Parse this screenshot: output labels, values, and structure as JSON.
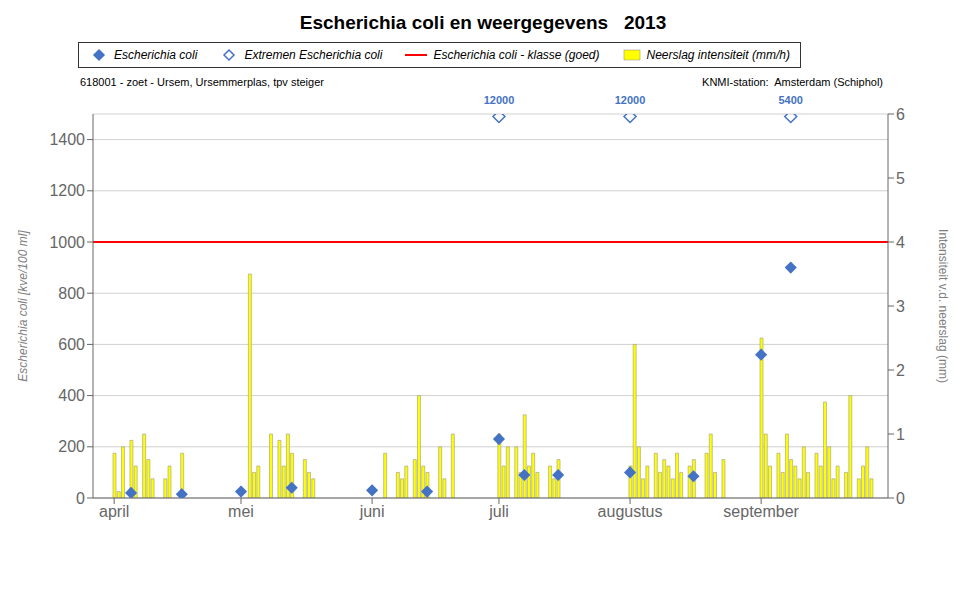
{
  "chart_data": {
    "type": "scatter",
    "title": "Escherichia coli en weergegevens   2013",
    "subtitle": [
      "618001 - zoet - Ursem, Ursemmerplas, tpv steiger",
      "KNMI-station:  Amsterdam (Schiphol)"
    ],
    "ylabel": "Escherichia coli [kve/100 ml]",
    "y2label": "Intensiteit v.d. neerslag (mm)",
    "xlim": [
      86,
      274
    ],
    "xticks": [
      {
        "value": 91,
        "label": "april"
      },
      {
        "value": 121,
        "label": "mei"
      },
      {
        "value": 152,
        "label": "juni"
      },
      {
        "value": 182,
        "label": "juli"
      },
      {
        "value": 213,
        "label": "augustus"
      },
      {
        "value": 244,
        "label": "september"
      }
    ],
    "ylim": [
      0,
      1500
    ],
    "yticks": [
      0,
      200,
      400,
      600,
      800,
      1000,
      1200,
      1400
    ],
    "y2lim": [
      0,
      6
    ],
    "y2ticks": [
      0,
      1,
      2,
      3,
      4,
      5,
      6
    ],
    "grid": true,
    "legend": "top",
    "series": [
      {
        "name": "Escherichia coli",
        "type": "scatter",
        "marker": "diamond",
        "color": "#4472c4",
        "x": [
          95,
          107,
          121,
          133,
          152,
          165,
          182,
          188,
          196,
          213,
          228,
          244,
          251
        ],
        "values": [
          20,
          15,
          25,
          40,
          30,
          25,
          230,
          90,
          90,
          100,
          85,
          560,
          900
        ]
      },
      {
        "name": "Extremen Escherichia coli",
        "type": "scatter",
        "marker": "diamond_open",
        "color": "#4472c4",
        "x": [
          182,
          213,
          251
        ],
        "values": [
          1490,
          1490,
          1490
        ]
      },
      {
        "name": "Escherichia coli - klasse (goed)",
        "type": "hline",
        "color": "#ff0000",
        "values": [
          1000
        ]
      },
      {
        "name": "Neerslag intensiteit (mm/h)",
        "type": "bar",
        "axis": "y2",
        "color": "#ffff00",
        "x": [
          91,
          92,
          93,
          94,
          95,
          96,
          97,
          98,
          99,
          100,
          101,
          102,
          103,
          104,
          105,
          106,
          107,
          108,
          109,
          110,
          111,
          112,
          113,
          114,
          115,
          116,
          117,
          118,
          119,
          120,
          121,
          122,
          123,
          124,
          125,
          126,
          127,
          128,
          129,
          130,
          131,
          132,
          133,
          134,
          135,
          136,
          137,
          138,
          139,
          140,
          141,
          142,
          143,
          144,
          145,
          146,
          147,
          148,
          149,
          150,
          151,
          152,
          153,
          154,
          155,
          156,
          157,
          158,
          159,
          160,
          161,
          162,
          163,
          164,
          165,
          166,
          167,
          168,
          169,
          170,
          171,
          172,
          173,
          174,
          175,
          176,
          177,
          178,
          179,
          180,
          181,
          182,
          183,
          184,
          185,
          186,
          187,
          188,
          189,
          190,
          191,
          192,
          193,
          194,
          195,
          196,
          197,
          198,
          199,
          200,
          201,
          202,
          203,
          204,
          205,
          206,
          207,
          208,
          209,
          210,
          211,
          212,
          213,
          214,
          215,
          216,
          217,
          218,
          219,
          220,
          221,
          222,
          223,
          224,
          225,
          226,
          227,
          228,
          229,
          230,
          231,
          232,
          233,
          234,
          235,
          236,
          237,
          238,
          239,
          240,
          241,
          242,
          243,
          244,
          245,
          246,
          247,
          248,
          249,
          250,
          251,
          252,
          253,
          254,
          255,
          256,
          257,
          258,
          259,
          260,
          261,
          262,
          263,
          264,
          265,
          266,
          267,
          268,
          269,
          270
        ],
        "values": [
          0.7,
          0.1,
          0.8,
          0.0,
          0.9,
          0.5,
          0.0,
          1.0,
          0.6,
          0.3,
          0.0,
          0.0,
          0.3,
          0.5,
          0.0,
          0.0,
          0.7,
          0.0,
          0.0,
          0.0,
          0.0,
          0.0,
          0.0,
          0.0,
          0.0,
          0.0,
          0.0,
          0.0,
          0.0,
          0.0,
          0.0,
          0.0,
          3.5,
          0.4,
          0.5,
          0.0,
          0.0,
          1.0,
          0.0,
          0.9,
          0.5,
          1.0,
          0.7,
          0.0,
          0.0,
          0.6,
          0.4,
          0.3,
          0.0,
          0.0,
          0.0,
          0.0,
          0.0,
          0.0,
          0.0,
          0.0,
          0.0,
          0.0,
          0.0,
          0.0,
          0.0,
          0.0,
          0.0,
          0.0,
          0.7,
          0.0,
          0.0,
          0.4,
          0.3,
          0.5,
          0.0,
          0.6,
          1.6,
          0.5,
          0.4,
          0.0,
          0.0,
          0.8,
          0.3,
          0.0,
          1.0,
          0.0,
          0.0,
          0.0,
          0.0,
          0.0,
          0.0,
          0.0,
          0.0,
          0.0,
          0.0,
          1.0,
          0.5,
          0.8,
          0.0,
          0.8,
          0.4,
          1.3,
          0.5,
          0.7,
          0.4,
          0.0,
          0.0,
          0.5,
          0.3,
          0.6,
          0.0,
          0.0,
          0.0,
          0.0,
          0.0,
          0.0,
          0.0,
          0.0,
          0.0,
          0.0,
          0.0,
          0.0,
          0.0,
          0.0,
          0.0,
          0.0,
          0.5,
          2.4,
          0.8,
          0.3,
          0.5,
          0.0,
          0.7,
          0.4,
          0.6,
          0.5,
          0.3,
          0.7,
          0.4,
          0.0,
          0.5,
          0.6,
          0.0,
          0.0,
          0.7,
          1.0,
          0.4,
          0.0,
          0.6,
          0.0,
          0.0,
          0.0,
          0.0,
          0.0,
          0.0,
          0.0,
          0.0,
          2.5,
          1.0,
          0.5,
          0.0,
          0.7,
          0.4,
          1.0,
          0.6,
          0.5,
          0.3,
          0.8,
          0.4,
          0.0,
          0.7,
          0.5,
          1.5,
          0.8,
          0.3,
          0.5,
          0.0,
          0.4,
          1.6,
          0.0,
          0.3,
          0.5,
          0.8,
          0.3
        ]
      }
    ],
    "annotations": [
      {
        "x": 182,
        "text": "12000"
      },
      {
        "x": 213,
        "text": "12000"
      },
      {
        "x": 251,
        "text": "5400"
      }
    ]
  }
}
